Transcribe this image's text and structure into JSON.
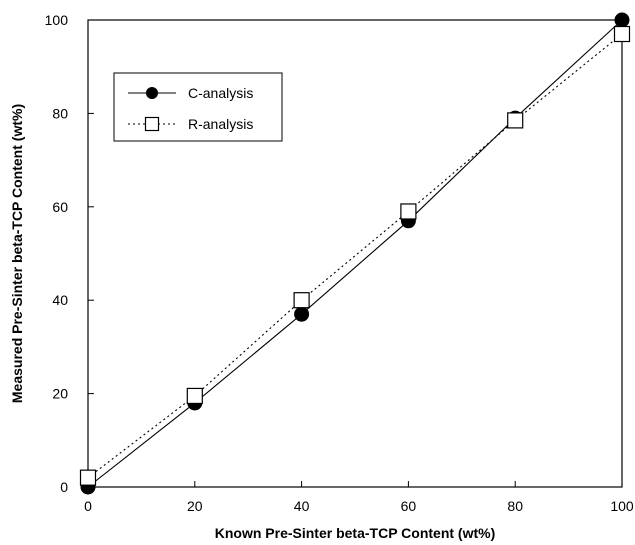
{
  "chart_data": {
    "type": "line",
    "xlabel": "Known Pre-Sinter beta-TCP Content (wt%)",
    "ylabel": "Measured Pre-Sinter beta-TCP Content (wt%)",
    "xlim": [
      0,
      100
    ],
    "ylim": [
      0,
      100
    ],
    "x_ticks": [
      "0",
      "20",
      "40",
      "60",
      "80",
      "100"
    ],
    "y_ticks": [
      "0",
      "20",
      "40",
      "60",
      "80",
      "100"
    ],
    "grid": false,
    "legend_position": "top-left",
    "series": [
      {
        "name": "C-analysis",
        "marker": "filled-circle",
        "line_style": "solid",
        "color": "#000000",
        "x": [
          0,
          20,
          40,
          60,
          80,
          100
        ],
        "y": [
          0,
          18,
          37,
          57,
          79,
          100
        ]
      },
      {
        "name": "R-analysis",
        "marker": "open-square",
        "line_style": "dotted",
        "color": "#000000",
        "x": [
          0,
          20,
          40,
          60,
          80,
          100
        ],
        "y": [
          2,
          19.5,
          40,
          59,
          78.5,
          97
        ]
      }
    ]
  }
}
